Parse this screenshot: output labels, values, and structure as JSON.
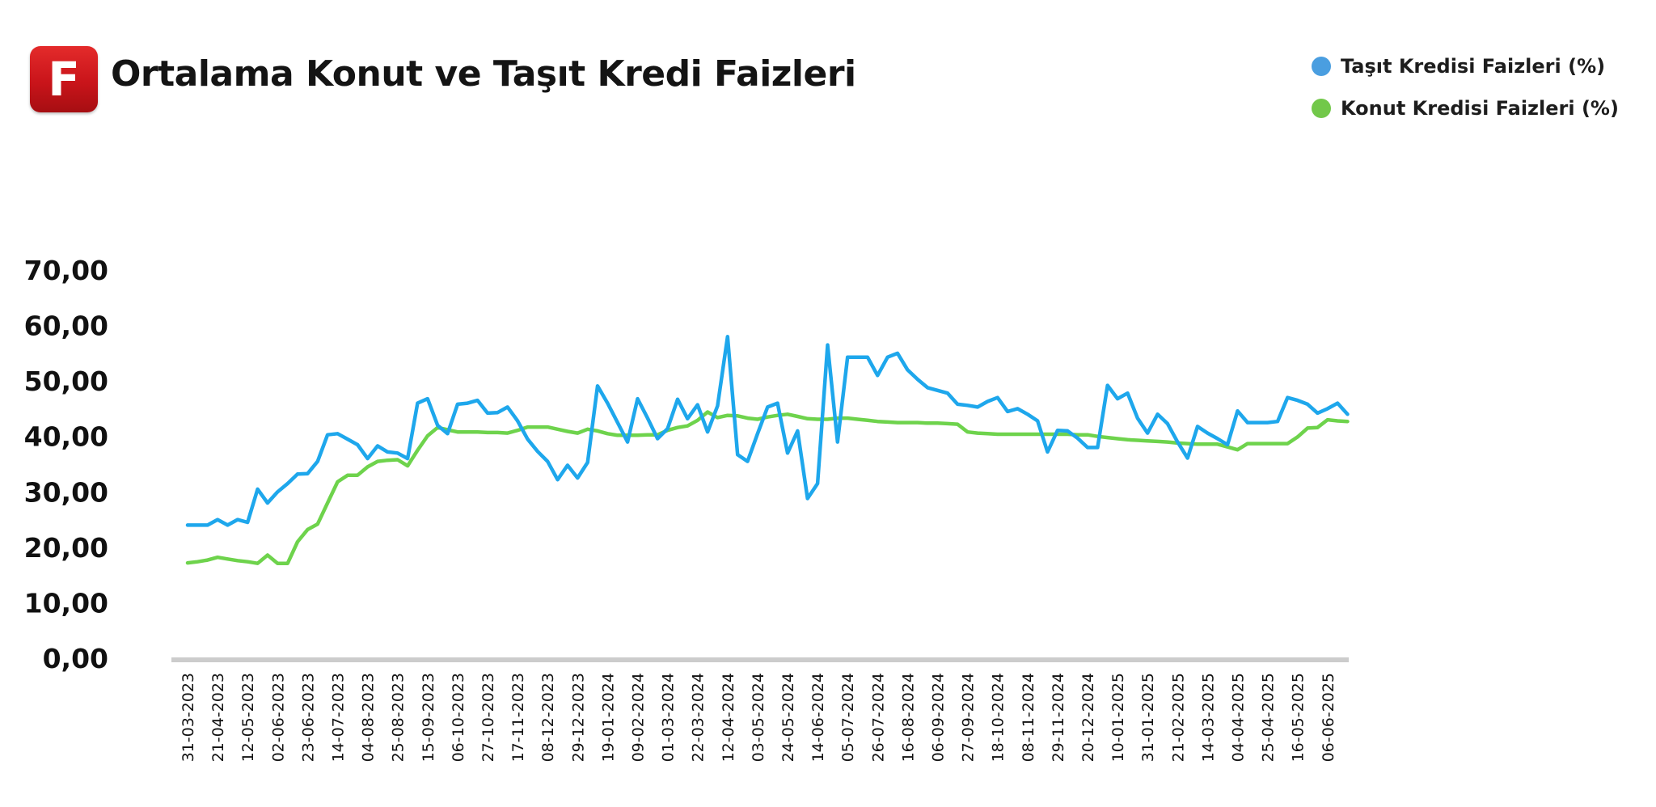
{
  "header": {
    "logo_letter": "F",
    "title": "Ortalama Konut ve Taşıt Kredi Faizleri"
  },
  "chart_data": {
    "type": "line",
    "title": "Ortalama Konut ve Taşıt Kredi Faizleri",
    "xlabel": "",
    "ylabel": "",
    "ylim": [
      0,
      70
    ],
    "yticks": [
      "0,00",
      "10,00",
      "20,00",
      "30,00",
      "40,00",
      "50,00",
      "60,00",
      "70,00"
    ],
    "grid": false,
    "legend_position": "top-right",
    "x_tick_labels": [
      "31-03-2023",
      "21-04-2023",
      "12-05-2023",
      "02-06-2023",
      "23-06-2023",
      "14-07-2023",
      "04-08-2023",
      "25-08-2023",
      "15-09-2023",
      "06-10-2023",
      "27-10-2023",
      "17-11-2023",
      "08-12-2023",
      "29-12-2023",
      "19-01-2024",
      "09-02-2024",
      "01-03-2024",
      "22-03-2024",
      "12-04-2024",
      "03-05-2024",
      "24-05-2024",
      "14-06-2024",
      "05-07-2024",
      "26-07-2024",
      "16-08-2024",
      "06-09-2024",
      "27-09-2024",
      "18-10-2024",
      "08-11-2024",
      "29-11-2024",
      "20-12-2024",
      "10-01-2025",
      "31-01-2025",
      "21-02-2025",
      "14-03-2025",
      "04-04-2025",
      "25-04-2025",
      "16-05-2025",
      "06-06-2025"
    ],
    "points_per_tick": 3,
    "series": [
      {
        "name": "Taşıt Kredisi Faizleri (%)",
        "color": "#1ea7ec",
        "legend_color": "#4a9ee0",
        "values": [
          24,
          24,
          24,
          25,
          24,
          25,
          24.5,
          30.5,
          28,
          30,
          31.5,
          33.2,
          33.3,
          35.5,
          40.3,
          40.5,
          39.5,
          38.5,
          36,
          38.3,
          37.2,
          37,
          36,
          46,
          46.8,
          42,
          40.5,
          45.8,
          46,
          46.5,
          44.2,
          44.3,
          45.3,
          42.8,
          39.5,
          37.3,
          35.5,
          32.2,
          34.8,
          32.5,
          35.3,
          49.1,
          46,
          42.5,
          39,
          46.8,
          43.3,
          39.6,
          41.4,
          46.7,
          43.2,
          45.7,
          40.8,
          45.5,
          58,
          36.7,
          35.5,
          40.5,
          45.3,
          46,
          37,
          41,
          28.8,
          31.5,
          56.5,
          39,
          54.3,
          54.3,
          54.3,
          51,
          54.3,
          55,
          52,
          50.3,
          48.8,
          48.3,
          47.8,
          45.8,
          45.6,
          45.3,
          46.3,
          47,
          44.5,
          45,
          44,
          42.8,
          37.2,
          41.1,
          41,
          39.7,
          38,
          38,
          49.2,
          46.8,
          47.8,
          43.3,
          40.6,
          44,
          42.3,
          39,
          36.1,
          41.8,
          40.6,
          39.6,
          38.5,
          44.6,
          42.5,
          42.5,
          42.5,
          42.7,
          47,
          46.5,
          45.8,
          44.2,
          45,
          46,
          44
        ]
      },
      {
        "name": "Konut Kredisi Faizleri (%)",
        "color": "#6ed34c",
        "legend_color": "#72c84a",
        "values": [
          17.2,
          17.4,
          17.7,
          18.2,
          17.9,
          17.6,
          17.4,
          17.1,
          18.6,
          17.1,
          17.1,
          21,
          23.2,
          24.2,
          28,
          31.8,
          33,
          33,
          34.5,
          35.5,
          35.7,
          35.8,
          34.7,
          37.5,
          40.1,
          41.6,
          41.2,
          40.8,
          40.8,
          40.8,
          40.7,
          40.7,
          40.6,
          41.1,
          41.7,
          41.7,
          41.7,
          41.3,
          40.9,
          40.6,
          41.3,
          41,
          40.5,
          40.2,
          40.2,
          40.2,
          40.3,
          40.3,
          41.1,
          41.6,
          41.9,
          42.9,
          44.4,
          43.4,
          43.8,
          43.7,
          43.3,
          43.1,
          43.5,
          43.8,
          44,
          43.6,
          43.2,
          43.1,
          43.1,
          43.3,
          43.3,
          43.1,
          42.9,
          42.7,
          42.6,
          42.5,
          42.5,
          42.5,
          42.4,
          42.4,
          42.3,
          42.2,
          40.8,
          40.6,
          40.5,
          40.4,
          40.4,
          40.4,
          40.4,
          40.4,
          40.4,
          40.4,
          40.4,
          40.3,
          40.3,
          40,
          39.8,
          39.6,
          39.4,
          39.3,
          39.2,
          39.1,
          39,
          38.8,
          38.7,
          38.6,
          38.6,
          38.6,
          38.1,
          37.6,
          38.7,
          38.7,
          38.7,
          38.7,
          38.7,
          39.9,
          41.5,
          41.6,
          43,
          42.8,
          42.7
        ]
      }
    ]
  }
}
